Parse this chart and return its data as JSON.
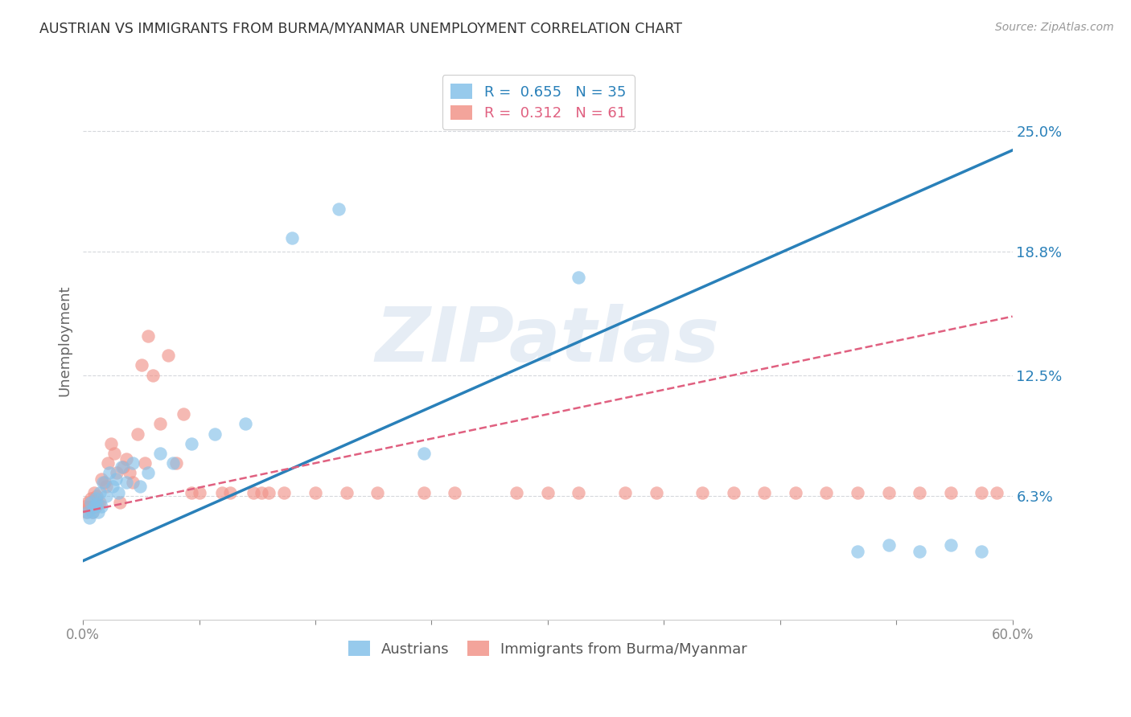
{
  "title": "AUSTRIAN VS IMMIGRANTS FROM BURMA/MYANMAR UNEMPLOYMENT CORRELATION CHART",
  "source": "Source: ZipAtlas.com",
  "xlabel_ticks": [
    "0.0%",
    "",
    "",
    "",
    "",
    "",
    "",
    "",
    "60.0%"
  ],
  "xlabel_vals": [
    0.0,
    7.5,
    15.0,
    22.5,
    30.0,
    37.5,
    45.0,
    52.5,
    60.0
  ],
  "ylabel_ticks": [
    "6.3%",
    "12.5%",
    "18.8%",
    "25.0%"
  ],
  "ylabel_vals": [
    6.3,
    12.5,
    18.8,
    25.0
  ],
  "xmin": 0.0,
  "xmax": 60.0,
  "ymin": 0.0,
  "ymax": 28.5,
  "legend_blue_R": "0.655",
  "legend_blue_N": "35",
  "legend_pink_R": "0.312",
  "legend_pink_N": "61",
  "legend_label_blue": "Austrians",
  "legend_label_pink": "Immigrants from Burma/Myanmar",
  "watermark": "ZIPatlas",
  "blue_color": "#85c1e9",
  "pink_color": "#f1948a",
  "blue_line_color": "#2980b9",
  "pink_line_color": "#e06080",
  "title_color": "#333333",
  "axis_label_color": "#666666",
  "tick_color_blue": "#2980b9",
  "grid_color": "#d5d8dc",
  "blue_line_y0": 3.0,
  "blue_line_y1": 24.0,
  "pink_line_y0": 5.5,
  "pink_line_y1": 15.5,
  "scatter_blue_x": [
    0.3,
    0.4,
    0.5,
    0.6,
    0.7,
    0.8,
    0.9,
    1.0,
    1.1,
    1.2,
    1.3,
    1.5,
    1.7,
    1.9,
    2.1,
    2.3,
    2.5,
    2.8,
    3.2,
    3.7,
    4.2,
    5.0,
    5.8,
    7.0,
    8.5,
    10.5,
    13.5,
    16.5,
    22.0,
    32.0,
    50.0,
    52.0,
    54.0,
    56.0,
    58.0
  ],
  "scatter_blue_y": [
    5.5,
    5.2,
    6.0,
    5.5,
    5.8,
    6.2,
    5.9,
    5.5,
    6.5,
    5.8,
    7.0,
    6.3,
    7.5,
    6.8,
    7.2,
    6.5,
    7.8,
    7.0,
    8.0,
    6.8,
    7.5,
    8.5,
    8.0,
    9.0,
    9.5,
    10.0,
    19.5,
    21.0,
    8.5,
    17.5,
    3.5,
    3.8,
    3.5,
    3.8,
    3.5
  ],
  "scatter_pink_x": [
    0.1,
    0.2,
    0.3,
    0.4,
    0.5,
    0.6,
    0.7,
    0.8,
    0.9,
    1.0,
    1.1,
    1.2,
    1.4,
    1.5,
    1.6,
    1.8,
    2.0,
    2.2,
    2.4,
    2.6,
    2.8,
    3.0,
    3.2,
    3.5,
    4.0,
    4.5,
    5.5,
    6.5,
    7.5,
    9.0,
    11.0,
    11.5,
    13.0,
    15.0,
    17.0,
    19.0,
    22.0,
    24.0,
    28.0,
    30.0,
    32.0,
    35.0,
    37.0,
    40.0,
    42.0,
    44.0,
    46.0,
    48.0,
    50.0,
    52.0,
    54.0,
    56.0,
    58.0,
    59.0,
    3.8,
    4.2,
    5.0,
    6.0,
    7.0,
    9.5,
    12.0
  ],
  "scatter_pink_y": [
    5.8,
    5.5,
    6.0,
    5.8,
    6.2,
    5.5,
    6.5,
    5.8,
    6.3,
    5.9,
    6.0,
    7.2,
    7.0,
    6.8,
    8.0,
    9.0,
    8.5,
    7.5,
    6.0,
    7.8,
    8.2,
    7.5,
    7.0,
    9.5,
    8.0,
    12.5,
    13.5,
    10.5,
    6.5,
    6.5,
    6.5,
    6.5,
    6.5,
    6.5,
    6.5,
    6.5,
    6.5,
    6.5,
    6.5,
    6.5,
    6.5,
    6.5,
    6.5,
    6.5,
    6.5,
    6.5,
    6.5,
    6.5,
    6.5,
    6.5,
    6.5,
    6.5,
    6.5,
    6.5,
    13.0,
    14.5,
    10.0,
    8.0,
    6.5,
    6.5,
    6.5
  ]
}
